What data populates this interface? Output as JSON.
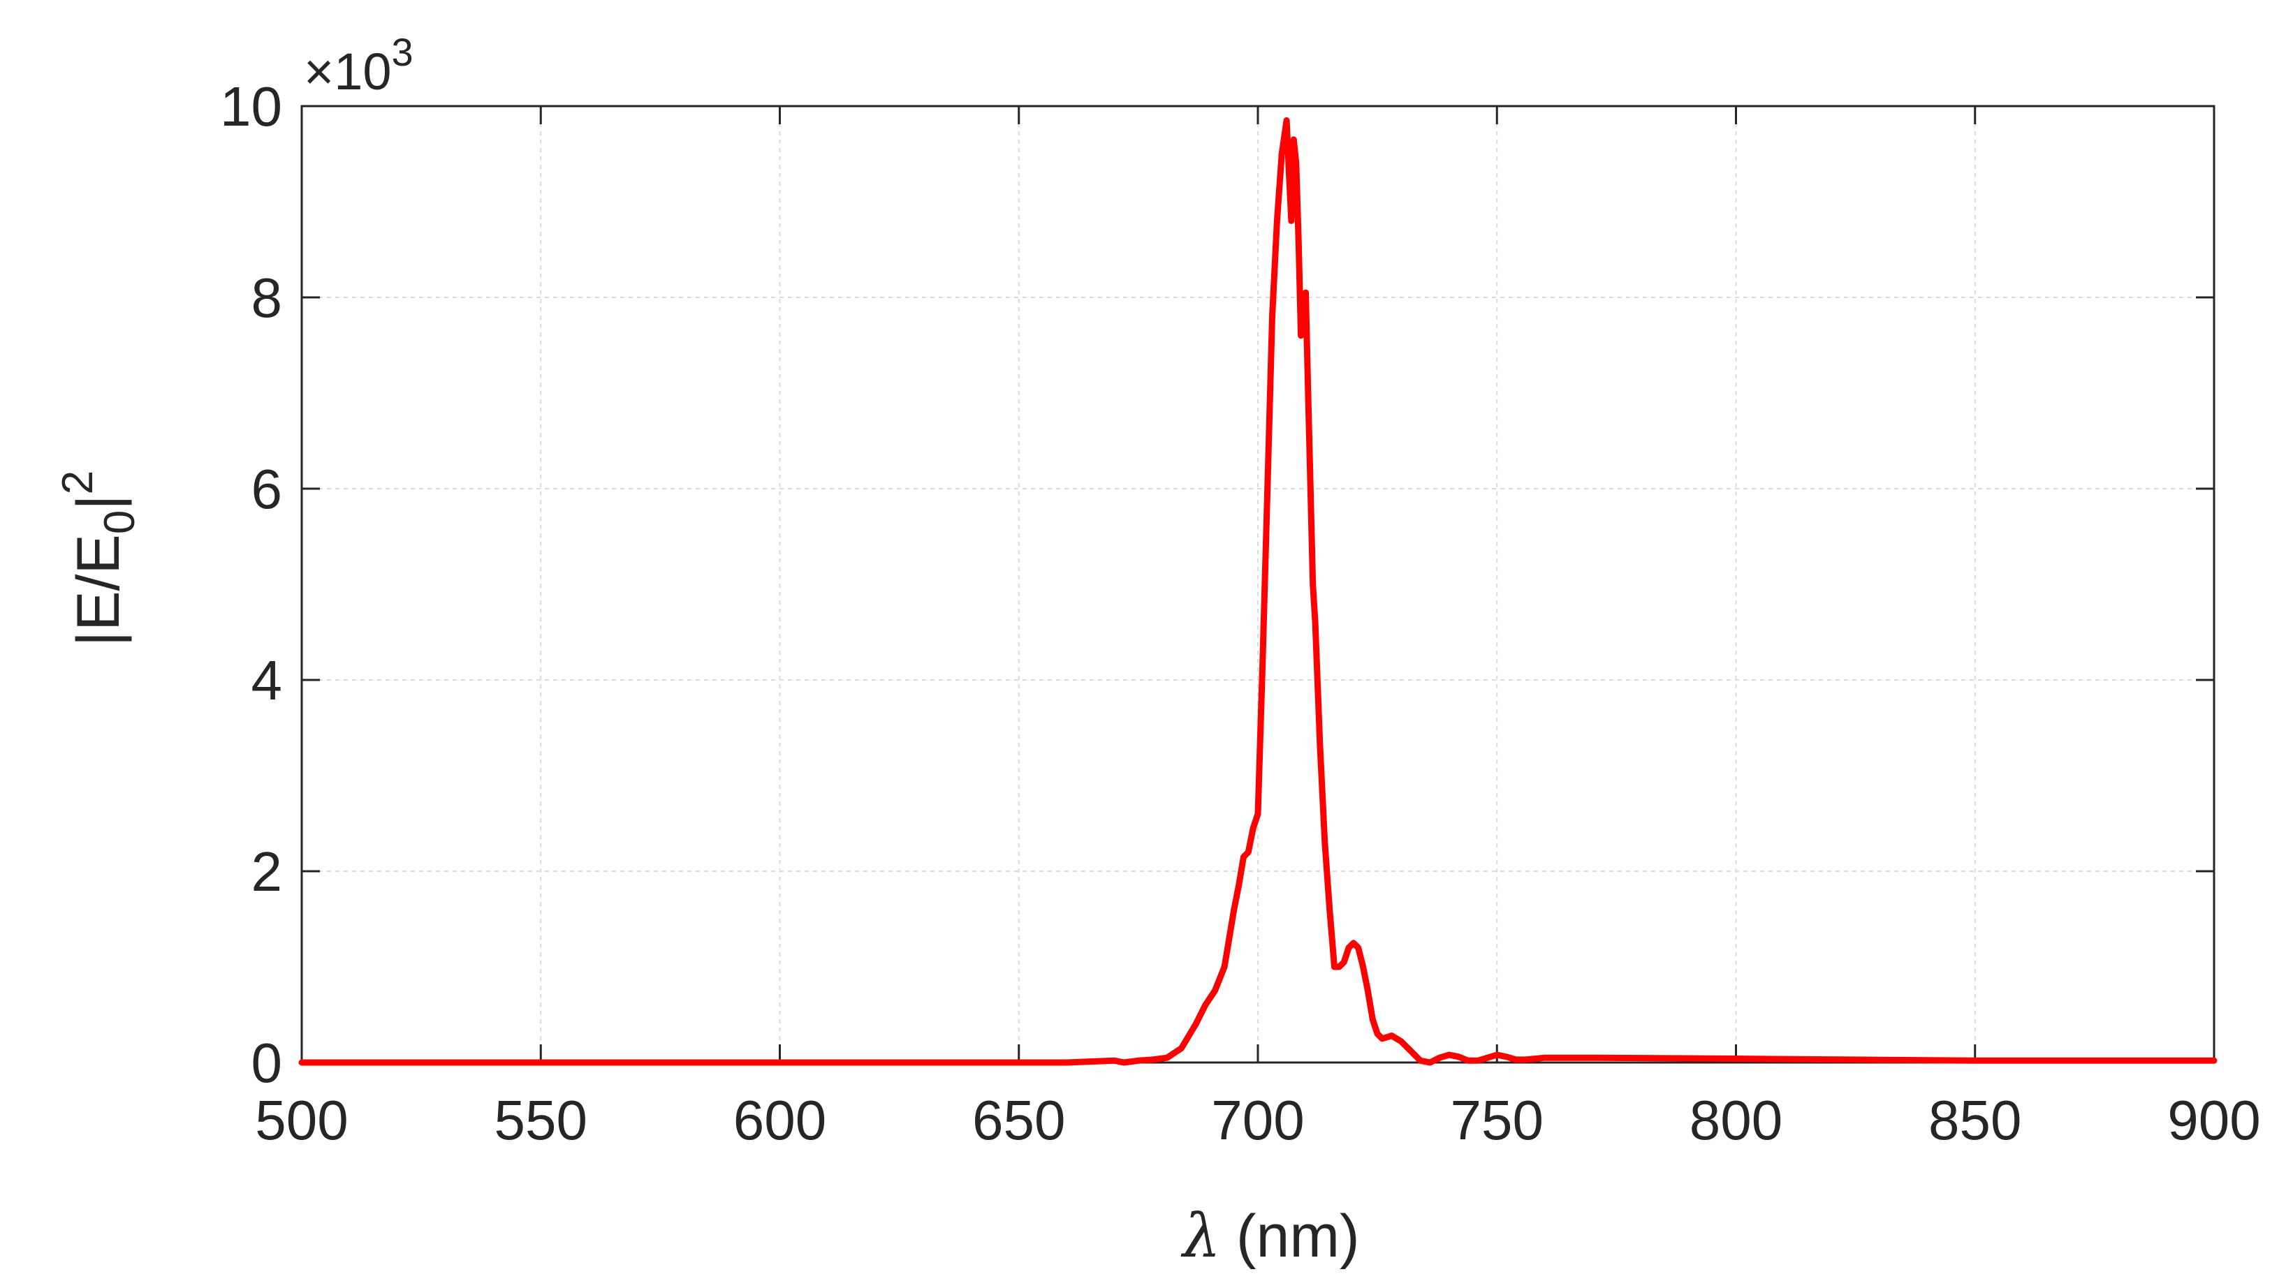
{
  "chart_data": {
    "type": "line",
    "xlabel_symbol": "λ",
    "xlabel_unit": "(nm)",
    "ylabel": "|E/E0|2",
    "ylabel_parts": {
      "base": "|E/E",
      "sub": "0",
      "close": "|",
      "sup": "2"
    },
    "y_multiplier": {
      "times": "×10",
      "exp": "3"
    },
    "xlim": [
      500,
      900
    ],
    "ylim": [
      0,
      10
    ],
    "grid": true,
    "x_ticks": [
      500,
      550,
      600,
      650,
      700,
      750,
      800,
      850,
      900
    ],
    "y_ticks": [
      0,
      2,
      4,
      6,
      8,
      10
    ],
    "series": [
      {
        "color": "#ff0000",
        "x": [
          500,
          600,
          660,
          670,
          672,
          675,
          678,
          681,
          684,
          687,
          689,
          691,
          693,
          695,
          696,
          697,
          698,
          699,
          700,
          701,
          702,
          703,
          704,
          705,
          706,
          706.5,
          707,
          707.5,
          708,
          708.5,
          709,
          709.5,
          710,
          710.5,
          711,
          711.5,
          712,
          713,
          714,
          715,
          716,
          717,
          718,
          719,
          720,
          721,
          722,
          723,
          724,
          725,
          726,
          728,
          730,
          732,
          734,
          736,
          738,
          740,
          742,
          744,
          746,
          748,
          750,
          752,
          754,
          756,
          760,
          770,
          800,
          850,
          900
        ],
        "y": [
          0.0,
          0.0,
          0.0,
          0.02,
          0.0,
          0.02,
          0.03,
          0.05,
          0.15,
          0.4,
          0.6,
          0.75,
          1.0,
          1.6,
          1.85,
          2.15,
          2.2,
          2.45,
          2.6,
          4.2,
          6.0,
          7.8,
          8.8,
          9.5,
          9.85,
          9.3,
          8.8,
          9.65,
          9.4,
          8.6,
          7.6,
          7.8,
          8.05,
          7.0,
          6.0,
          5.0,
          4.6,
          3.3,
          2.3,
          1.6,
          1.0,
          1.0,
          1.05,
          1.2,
          1.25,
          1.2,
          1.0,
          0.75,
          0.45,
          0.3,
          0.25,
          0.28,
          0.22,
          0.12,
          0.02,
          0.0,
          0.05,
          0.08,
          0.06,
          0.02,
          0.02,
          0.05,
          0.08,
          0.06,
          0.03,
          0.03,
          0.05,
          0.05,
          0.04,
          0.02,
          0.02
        ]
      }
    ]
  }
}
